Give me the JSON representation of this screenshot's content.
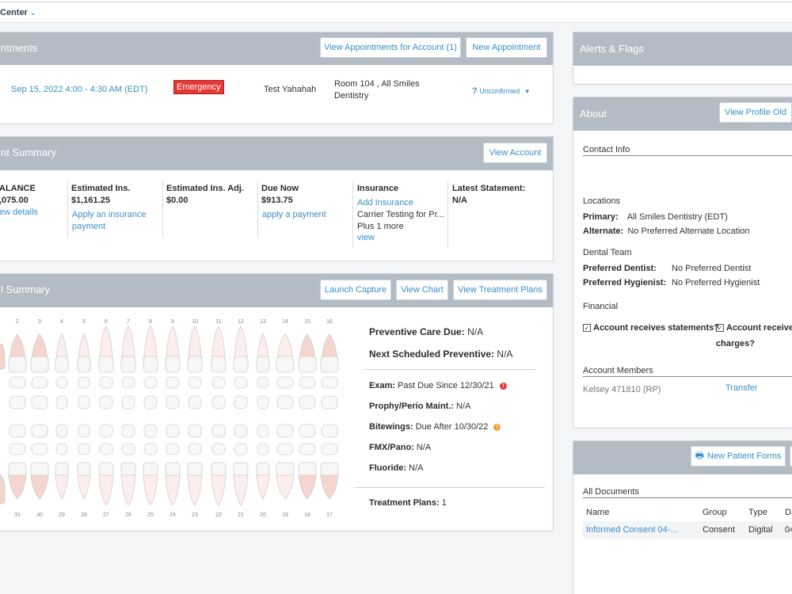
{
  "topbar": {
    "title": "Center",
    "chevron": "chevron-down-icon"
  },
  "appointments": {
    "title": "ntments",
    "btn_view": "View Appointments for Account (1)",
    "btn_new": "New Appointment",
    "row": {
      "datetime": "Sep 15, 2022 4:00 - 4:30 AM (EDT)",
      "type": "Emergency",
      "provider": "Test Yahahah",
      "location_line1": "Room 104 , All Smiles",
      "location_line2": "Dentistry",
      "status_icon": "?",
      "status": "Unconfirmed"
    }
  },
  "account_summary": {
    "title": "nt Summary",
    "btn_view": "View Account",
    "cols": [
      {
        "label": "ALANCE",
        "value": ",075.00",
        "link1": "ew details"
      },
      {
        "label": "Estimated Ins.",
        "value": "$1,161.25",
        "link1": "Apply an insurance",
        "link2": "payment"
      },
      {
        "label": "Estimated Ins. Adj.",
        "value": "$0.00"
      },
      {
        "label": "Due Now",
        "value": "$913.75",
        "link1": "apply a payment"
      },
      {
        "label": "Insurance",
        "link1": "Add Insurance",
        "text1": "Carrier Testing for Pr...",
        "text2": "Plus 1 more",
        "link2": "view"
      },
      {
        "label": "Latest Statement:",
        "value": "N/A"
      }
    ]
  },
  "clinical": {
    "title": "l Summary",
    "btn_capture": "Launch Capture",
    "btn_chart": "View Chart",
    "btn_plans": "View Treatment Plans",
    "upper_numbers": [
      "2",
      "3",
      "4",
      "5",
      "6",
      "7",
      "8",
      "9",
      "10",
      "11",
      "12",
      "13",
      "14",
      "15",
      "16"
    ],
    "lower_numbers": [
      "31",
      "30",
      "29",
      "28",
      "27",
      "26",
      "25",
      "24",
      "23",
      "22",
      "21",
      "20",
      "19",
      "18",
      "17"
    ],
    "preventive_label": "Preventive Care Due:",
    "preventive_value": "N/A",
    "next_label": "Next Scheduled Preventive:",
    "next_value": "N/A",
    "exam_label": "Exam:",
    "exam_value": "Past Due Since 12/30/21",
    "exam_flag": "!",
    "prophy_label": "Prophy/Perio Maint.:",
    "prophy_value": "N/A",
    "bitewings_label": "Bitewings:",
    "bitewings_value": "Due After 10/30/22",
    "bitewings_flag": "!",
    "fmx_label": "FMX/Pano:",
    "fmx_value": "N/A",
    "fluoride_label": "Fluoride:",
    "fluoride_value": "N/A",
    "plans_label": "Treatment Plans:",
    "plans_value": "1"
  },
  "alerts": {
    "title": "Alerts & Flags"
  },
  "about": {
    "title": "About",
    "btn_profile": "View Profile Old",
    "contact_info": "Contact Info",
    "locations": "Locations",
    "primary_label": "Primary:",
    "primary_value": "All Smiles Dentistry (EDT)",
    "alternate_label": "Alternate:",
    "alternate_value": "No Preferred Alternate Location",
    "dental_team": "Dental Team",
    "pref_dentist_label": "Preferred Dentist:",
    "pref_dentist_value": "No Preferred Dentist",
    "pref_hyg_label": "Preferred Hygienist:",
    "pref_hyg_value": "No Preferred Hygienist",
    "financial": "Financial",
    "stmt_label": "Account receives statements?",
    "charges_label1": "Account receives",
    "charges_label2": "charges?",
    "members_title": "Account Members",
    "member_name": "Kelsey 471810 (RP)",
    "member_action": "Transfer"
  },
  "documents": {
    "btn_forms": "New Patient Forms",
    "all_docs": "All Documents",
    "headers": [
      "Name",
      "Group",
      "Type",
      "Da"
    ],
    "row": [
      "Informed Consent 04-...",
      "Consent",
      "Digital",
      "04"
    ]
  }
}
